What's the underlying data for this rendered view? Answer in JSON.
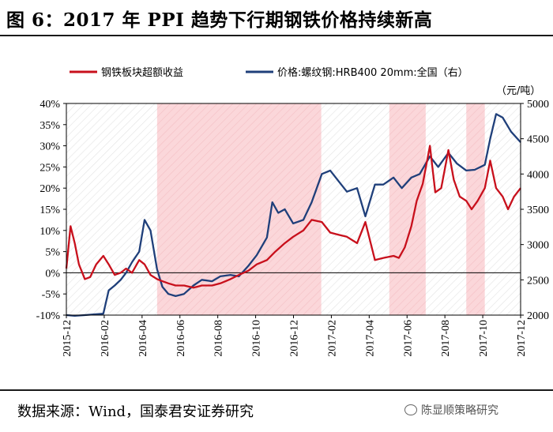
{
  "title": "图 6：2017 年 PPI 趋势下行期钢铁价格持续新高",
  "source": "数据来源：Wind，国泰君安证券研究",
  "watermark": "陈显顺策略研究",
  "colors": {
    "steel_excess": "#c8101c",
    "rebar_price": "#1f3f7a",
    "shade": "#fbd6d9",
    "hatch": "#e4e4e4"
  },
  "chart_data": {
    "type": "line",
    "title": "",
    "left_axis": {
      "ylim": [
        -0.1,
        0.4
      ],
      "ticks": [
        "40%",
        "35%",
        "30%",
        "25%",
        "20%",
        "15%",
        "10%",
        "5%",
        "0%",
        "-5%",
        "-10%"
      ]
    },
    "right_axis": {
      "ylim": [
        2000,
        5000
      ],
      "ticks": [
        "5000",
        "4500",
        "4000",
        "3500",
        "3000",
        "2500",
        "2000"
      ],
      "unit": "（元/吨）"
    },
    "x_ticks": [
      "2015-12",
      "2016-02",
      "2016-04",
      "2016-06",
      "2016-08",
      "2016-10",
      "2016-12",
      "2017-02",
      "2017-04",
      "2017-06",
      "2017-08",
      "2017-10",
      "2017-12"
    ],
    "shaded_periods": [
      [
        "2016-05-01",
        "2017-01-31"
      ],
      [
        "2017-05-25",
        "2017-07-25"
      ],
      [
        "2017-10-01",
        "2017-11-01"
      ]
    ],
    "series": [
      {
        "name": "钢铁板块超额收益",
        "axis": "left",
        "x": [
          "2015-12-01",
          "2015-12-08",
          "2015-12-15",
          "2015-12-22",
          "2016-01-01",
          "2016-01-10",
          "2016-01-20",
          "2016-02-01",
          "2016-02-10",
          "2016-02-20",
          "2016-03-01",
          "2016-03-10",
          "2016-03-20",
          "2016-04-01",
          "2016-04-10",
          "2016-04-20",
          "2016-05-01",
          "2016-05-10",
          "2016-05-20",
          "2016-06-01",
          "2016-06-15",
          "2016-07-01",
          "2016-07-15",
          "2016-08-01",
          "2016-08-15",
          "2016-09-01",
          "2016-09-15",
          "2016-10-01",
          "2016-10-15",
          "2016-11-01",
          "2016-11-15",
          "2016-12-01",
          "2016-12-15",
          "2017-01-01",
          "2017-01-15",
          "2017-02-01",
          "2017-02-15",
          "2017-03-01",
          "2017-03-15",
          "2017-04-01",
          "2017-04-15",
          "2017-05-01",
          "2017-05-15",
          "2017-06-01",
          "2017-06-10",
          "2017-06-20",
          "2017-07-01",
          "2017-07-10",
          "2017-07-20",
          "2017-08-01",
          "2017-08-10",
          "2017-08-20",
          "2017-09-01",
          "2017-09-10",
          "2017-09-20",
          "2017-10-01",
          "2017-10-10",
          "2017-10-20",
          "2017-11-01",
          "2017-11-10",
          "2017-11-20",
          "2017-12-01",
          "2017-12-10",
          "2017-12-20",
          "2017-12-31"
        ],
        "values": [
          0.01,
          0.11,
          0.07,
          0.02,
          -0.015,
          -0.01,
          0.02,
          0.04,
          0.02,
          -0.005,
          0.0,
          0.01,
          0.0,
          0.03,
          0.02,
          -0.005,
          -0.015,
          -0.02,
          -0.025,
          -0.03,
          -0.03,
          -0.035,
          -0.03,
          -0.03,
          -0.025,
          -0.015,
          -0.005,
          0.005,
          0.02,
          0.03,
          0.05,
          0.07,
          0.085,
          0.1,
          0.125,
          0.12,
          0.095,
          0.09,
          0.085,
          0.07,
          0.12,
          0.03,
          0.035,
          0.04,
          0.035,
          0.06,
          0.11,
          0.17,
          0.21,
          0.3,
          0.19,
          0.2,
          0.29,
          0.22,
          0.18,
          0.17,
          0.15,
          0.17,
          0.2,
          0.265,
          0.2,
          0.18,
          0.15,
          0.18,
          0.2
        ]
      },
      {
        "name": "价格:螺纹钢:HRB400 20mm:全国（右）",
        "axis": "right",
        "x": [
          "2015-12-01",
          "2015-12-15",
          "2016-01-01",
          "2016-01-15",
          "2016-02-01",
          "2016-02-10",
          "2016-02-20",
          "2016-03-01",
          "2016-03-10",
          "2016-03-20",
          "2016-04-01",
          "2016-04-10",
          "2016-04-20",
          "2016-05-01",
          "2016-05-10",
          "2016-05-20",
          "2016-06-01",
          "2016-06-15",
          "2016-07-01",
          "2016-07-15",
          "2016-08-01",
          "2016-08-15",
          "2016-09-01",
          "2016-09-15",
          "2016-10-01",
          "2016-10-15",
          "2016-11-01",
          "2016-11-10",
          "2016-11-20",
          "2016-12-01",
          "2016-12-15",
          "2017-01-01",
          "2017-01-15",
          "2017-02-01",
          "2017-02-15",
          "2017-03-01",
          "2017-03-15",
          "2017-04-01",
          "2017-04-15",
          "2017-05-01",
          "2017-05-15",
          "2017-06-01",
          "2017-06-15",
          "2017-07-01",
          "2017-07-15",
          "2017-08-01",
          "2017-08-15",
          "2017-09-01",
          "2017-09-15",
          "2017-10-01",
          "2017-10-15",
          "2017-11-01",
          "2017-11-10",
          "2017-11-20",
          "2017-12-01",
          "2017-12-15",
          "2017-12-31"
        ],
        "values": [
          2000,
          1990,
          2000,
          2010,
          2020,
          2350,
          2420,
          2500,
          2600,
          2750,
          2900,
          3350,
          3200,
          2650,
          2400,
          2300,
          2270,
          2300,
          2420,
          2500,
          2480,
          2550,
          2570,
          2550,
          2700,
          2850,
          3100,
          3600,
          3450,
          3500,
          3300,
          3350,
          3600,
          4000,
          4050,
          3900,
          3750,
          3800,
          3400,
          3850,
          3850,
          3950,
          3800,
          3950,
          4000,
          4250,
          4100,
          4300,
          4150,
          4050,
          4060,
          4130,
          4500,
          4850,
          4800,
          4600,
          4450
        ]
      }
    ]
  }
}
